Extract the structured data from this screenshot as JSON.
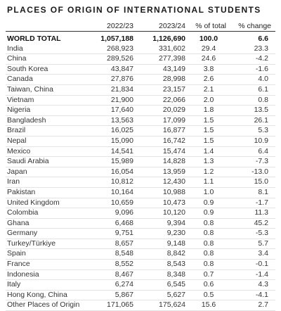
{
  "title": "PLACES OF ORIGIN OF INTERNATIONAL STUDENTS",
  "columns": [
    "",
    "2022/23",
    "2023/24",
    "% of total",
    "% change"
  ],
  "total": {
    "label": "WORLD TOTAL",
    "y2022": "1,057,188",
    "y2023": "1,126,690",
    "pct": "100.0",
    "chg": "6.6"
  },
  "rows": [
    {
      "label": "India",
      "y2022": "268,923",
      "y2023": "331,602",
      "pct": "29.4",
      "chg": "23.3"
    },
    {
      "label": "China",
      "y2022": "289,526",
      "y2023": "277,398",
      "pct": "24.6",
      "chg": "-4.2"
    },
    {
      "label": "South Korea",
      "y2022": "43,847",
      "y2023": "43,149",
      "pct": "3.8",
      "chg": "-1.6"
    },
    {
      "label": "Canada",
      "y2022": "27,876",
      "y2023": "28,998",
      "pct": "2.6",
      "chg": "4.0"
    },
    {
      "label": "Taiwan, China",
      "y2022": "21,834",
      "y2023": "23,157",
      "pct": "2.1",
      "chg": "6.1"
    },
    {
      "label": "Vietnam",
      "y2022": "21,900",
      "y2023": "22,066",
      "pct": "2.0",
      "chg": "0.8"
    },
    {
      "label": "Nigeria",
      "y2022": "17,640",
      "y2023": "20,029",
      "pct": "1.8",
      "chg": "13.5"
    },
    {
      "label": "Bangladesh",
      "y2022": "13,563",
      "y2023": "17,099",
      "pct": "1.5",
      "chg": "26.1"
    },
    {
      "label": "Brazil",
      "y2022": "16,025",
      "y2023": "16,877",
      "pct": "1.5",
      "chg": "5.3"
    },
    {
      "label": "Nepal",
      "y2022": "15,090",
      "y2023": "16,742",
      "pct": "1.5",
      "chg": "10.9"
    },
    {
      "label": "Mexico",
      "y2022": "14,541",
      "y2023": "15,474",
      "pct": "1.4",
      "chg": "6.4"
    },
    {
      "label": "Saudi Arabia",
      "y2022": "15,989",
      "y2023": "14,828",
      "pct": "1.3",
      "chg": "-7.3"
    },
    {
      "label": "Japan",
      "y2022": "16,054",
      "y2023": "13,959",
      "pct": "1.2",
      "chg": "-13.0"
    },
    {
      "label": "Iran",
      "y2022": "10,812",
      "y2023": "12,430",
      "pct": "1.1",
      "chg": "15.0"
    },
    {
      "label": "Pakistan",
      "y2022": "10,164",
      "y2023": "10,988",
      "pct": "1.0",
      "chg": "8.1"
    },
    {
      "label": "United Kingdom",
      "y2022": "10,659",
      "y2023": "10,473",
      "pct": "0.9",
      "chg": "-1.7"
    },
    {
      "label": "Colombia",
      "y2022": "9,096",
      "y2023": "10,120",
      "pct": "0.9",
      "chg": "11.3"
    },
    {
      "label": "Ghana",
      "y2022": "6,468",
      "y2023": "9,394",
      "pct": "0.8",
      "chg": "45.2"
    },
    {
      "label": "Germany",
      "y2022": "9,751",
      "y2023": "9,230",
      "pct": "0.8",
      "chg": "-5.3"
    },
    {
      "label": "Turkey/Türkiye",
      "y2022": "8,657",
      "y2023": "9,148",
      "pct": "0.8",
      "chg": "5.7"
    },
    {
      "label": "Spain",
      "y2022": "8,548",
      "y2023": "8,842",
      "pct": "0.8",
      "chg": "3.4"
    },
    {
      "label": "France",
      "y2022": "8,552",
      "y2023": "8,543",
      "pct": "0.8",
      "chg": "-0.1"
    },
    {
      "label": "Indonesia",
      "y2022": "8,467",
      "y2023": "8,348",
      "pct": "0.7",
      "chg": "-1.4"
    },
    {
      "label": "Italy",
      "y2022": "6,274",
      "y2023": "6,545",
      "pct": "0.6",
      "chg": "4.3"
    },
    {
      "label": "Hong Kong, China",
      "y2022": "5,867",
      "y2023": "5,627",
      "pct": "0.5",
      "chg": "-4.1"
    },
    {
      "label": "Other Places of Origin",
      "y2022": "171,065",
      "y2023": "175,624",
      "pct": "15.6",
      "chg": "2.7"
    }
  ]
}
